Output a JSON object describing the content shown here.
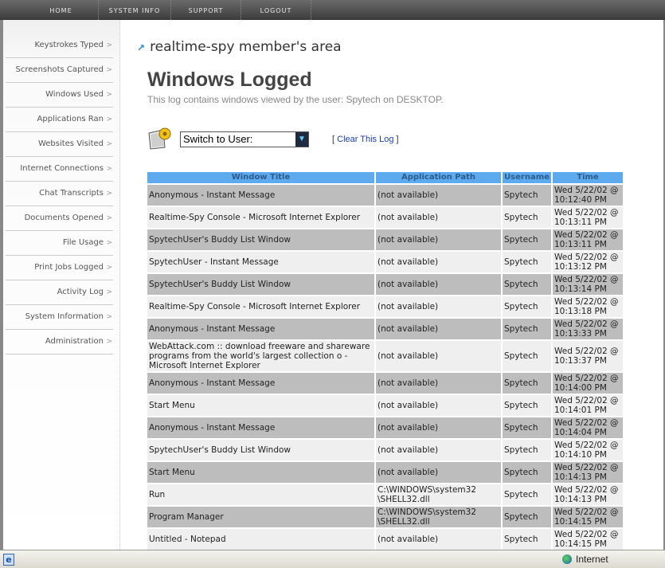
{
  "nav": [
    "HOME",
    "SYSTEM INFO",
    "SUPPORT",
    "LOGOUT"
  ],
  "sidebar": [
    "Keystrokes Typed",
    "Screenshots Captured",
    "Windows Used",
    "Applications Ran",
    "Websites Visited",
    "Internet Connections",
    "Chat Transcripts",
    "Documents Opened",
    "File Usage",
    "Print Jobs Logged",
    "Activity Log",
    "System Information",
    "Administration"
  ],
  "breadcrumb": "realtime-spy member's area",
  "title": "Windows Logged",
  "subtitle": "This log contains windows viewed by the user: Spytech on DESKTOP.",
  "switch_user": "Switch to User:",
  "clear": {
    "open": "[",
    "label": "Clear This Log",
    "close": "]"
  },
  "table": {
    "headers": [
      "Window Title",
      "Application Path",
      "Username",
      "Time"
    ],
    "rows": [
      [
        "Anonymous - Instant Message",
        "(not available)",
        "Spytech",
        "Wed 5/22/02 @ 10:12:40 PM"
      ],
      [
        "Realtime-Spy Console - Microsoft Internet Explorer",
        "(not available)",
        "Spytech",
        "Wed 5/22/02 @ 10:13:11 PM"
      ],
      [
        "SpytechUser's Buddy List Window",
        "(not available)",
        "Spytech",
        "Wed 5/22/02 @ 10:13:11 PM"
      ],
      [
        "SpytechUser - Instant Message",
        "(not available)",
        "Spytech",
        "Wed 5/22/02 @ 10:13:12 PM"
      ],
      [
        "SpytechUser's Buddy List Window",
        "(not available)",
        "Spytech",
        "Wed 5/22/02 @ 10:13:14 PM"
      ],
      [
        "Realtime-Spy Console - Microsoft Internet Explorer",
        "(not available)",
        "Spytech",
        "Wed 5/22/02 @ 10:13:18 PM"
      ],
      [
        "Anonymous - Instant Message",
        "(not available)",
        "Spytech",
        "Wed 5/22/02 @ 10:13:33 PM"
      ],
      [
        "WebAttack.com :: download freeware and shareware programs from the world's largest collection o - Microsoft Internet Explorer",
        "(not available)",
        "Spytech",
        "Wed 5/22/02 @ 10:13:37 PM"
      ],
      [
        "Anonymous - Instant Message",
        "(not available)",
        "Spytech",
        "Wed 5/22/02 @ 10:14:00 PM"
      ],
      [
        "Start Menu",
        "(not available)",
        "Spytech",
        "Wed 5/22/02 @ 10:14:01 PM"
      ],
      [
        "Anonymous - Instant Message",
        "(not available)",
        "Spytech",
        "Wed 5/22/02 @ 10:14:04 PM"
      ],
      [
        "SpytechUser's Buddy List Window",
        "(not available)",
        "Spytech",
        "Wed 5/22/02 @ 10:14:10 PM"
      ],
      [
        "Start Menu",
        "(not available)",
        "Spytech",
        "Wed 5/22/02 @ 10:14:13 PM"
      ],
      [
        "Run",
        "C:\\WINDOWS\\system32 \\SHELL32.dll",
        "Spytech",
        "Wed 5/22/02 @ 10:14:13 PM"
      ],
      [
        "Program Manager",
        "C:\\WINDOWS\\system32 \\SHELL32.dll",
        "Spytech",
        "Wed 5/22/02 @ 10:14:15 PM"
      ],
      [
        "Untitled - Notepad",
        "(not available)",
        "Spytech",
        "Wed 5/22/02 @ 10:14:15 PM"
      ]
    ]
  },
  "status": {
    "zone": "Internet"
  }
}
